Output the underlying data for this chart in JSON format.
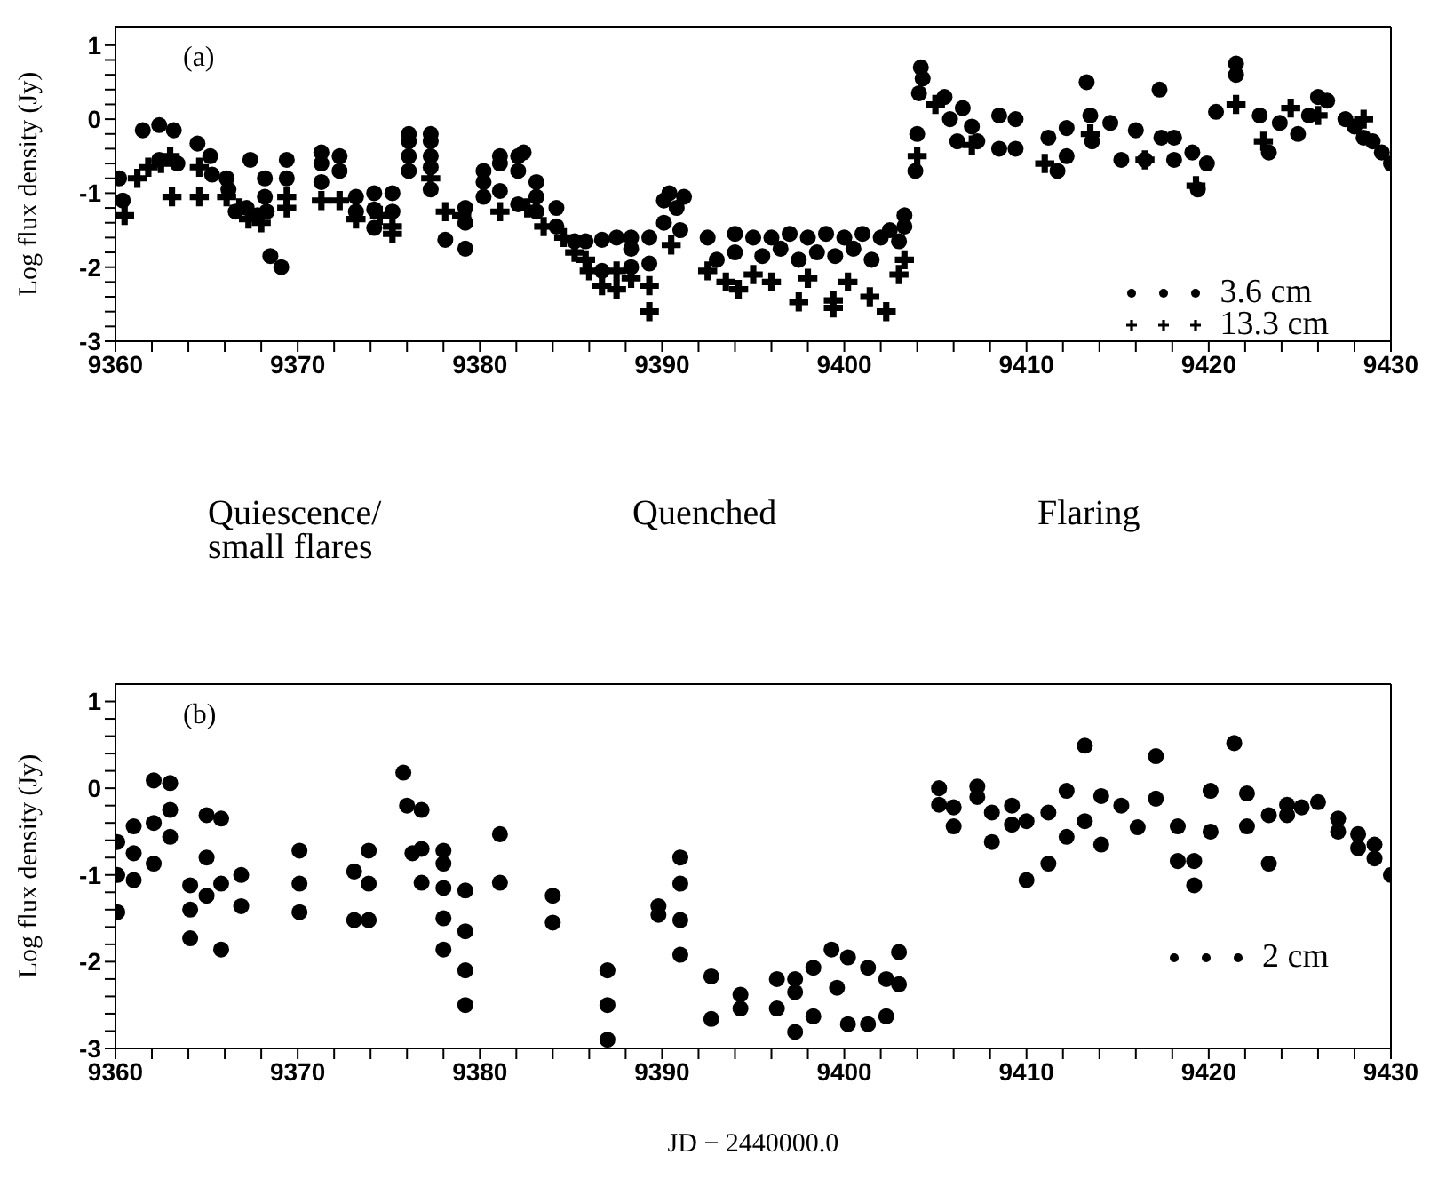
{
  "chart_data": [
    {
      "type": "scatter",
      "ylabel": "Log flux density (Jy)",
      "annotations": [
        "(a)",
        "Quiescence/\nsmall flares",
        "Quenched",
        "Flaring"
      ],
      "legend": "bottom right",
      "xlim": [
        9360,
        9430
      ],
      "ylim": [
        -3,
        1.25
      ],
      "xticks": [
        9360,
        {
          "value": 9362,
          "label": null
        },
        {
          "value": 9364,
          "label": null
        },
        {
          "value": 9366,
          "label": null
        },
        {
          "value": 9368,
          "label": null
        },
        9370,
        {
          "value": 9372,
          "label": null
        },
        {
          "value": 9374,
          "label": null
        },
        {
          "value": 9376,
          "label": null
        },
        {
          "value": 9378,
          "label": null
        },
        9380,
        {
          "value": 9382,
          "label": null
        },
        {
          "value": 9384,
          "label": null
        },
        {
          "value": 9386,
          "label": null
        },
        {
          "value": 9388,
          "label": null
        },
        9390,
        {
          "value": 9392,
          "label": null
        },
        {
          "value": 9394,
          "label": null
        },
        {
          "value": 9396,
          "label": null
        },
        {
          "value": 9398,
          "label": null
        },
        9400,
        {
          "value": 9402,
          "label": null
        },
        {
          "value": 9404,
          "label": null
        },
        {
          "value": 9406,
          "label": null
        },
        {
          "value": 9408,
          "label": null
        },
        9410,
        {
          "value": 9412,
          "label": null
        },
        {
          "value": 9414,
          "label": null
        },
        {
          "value": 9416,
          "label": null
        },
        {
          "value": 9418,
          "label": null
        },
        9420,
        {
          "value": 9422,
          "label": null
        },
        {
          "value": 9424,
          "label": null
        },
        {
          "value": 9426,
          "label": null
        },
        {
          "value": 9428,
          "label": null
        },
        9430
      ],
      "yticks": [
        -3,
        {
          "value": -2.8,
          "label": null
        },
        {
          "value": -2.6,
          "label": null
        },
        {
          "value": -2.4,
          "label": null
        },
        {
          "value": -2.2,
          "label": null
        },
        -2,
        {
          "value": -1.8,
          "label": null
        },
        {
          "value": -1.6,
          "label": null
        },
        {
          "value": -1.4,
          "label": null
        },
        {
          "value": -1.2,
          "label": null
        },
        -1,
        {
          "value": -0.8,
          "label": null
        },
        {
          "value": -0.6,
          "label": null
        },
        {
          "value": -0.4,
          "label": null
        },
        {
          "value": -0.2,
          "label": null
        },
        0,
        {
          "value": 0.2,
          "label": null
        },
        {
          "value": 0.4,
          "label": null
        },
        {
          "value": 0.6,
          "label": null
        },
        {
          "value": 0.8,
          "label": null
        },
        1
      ],
      "series": [
        {
          "name": "3.6 cm",
          "color": "#000000",
          "marker": "circle",
          "x": [
            9360.2,
            9360.4,
            9361.5,
            9362.4,
            9363.2,
            9362.4,
            9363.4,
            9364.5,
            9365.2,
            9365.3,
            9366.1,
            9366.2,
            9366.6,
            9367.4,
            9367.2,
            9367.8,
            9368.2,
            9368.2,
            9368.3,
            9368.5,
            9369.1,
            9369.4,
            9369.4,
            9371.3,
            9371.3,
            9371.3,
            9372.3,
            9372.3,
            9373.2,
            9373.2,
            9374.2,
            9374.2,
            9374.2,
            9375.2,
            9375.2,
            9376.1,
            9376.1,
            9376.1,
            9376.1,
            9377.3,
            9377.3,
            9377.3,
            9377.3,
            9377.3,
            9378.1,
            9379.2,
            9379.2,
            9379.2,
            9380.2,
            9380.2,
            9380.2,
            9381.1,
            9381.1,
            9381.1,
            9382.1,
            9382.1,
            9382.1,
            9382.4,
            9383.1,
            9383.1,
            9383.1,
            9384.2,
            9384.2,
            9385.2,
            9385.8,
            9386.7,
            9386.7,
            9387.5,
            9388.3,
            9388.3,
            9388.3,
            9389.3,
            9389.3,
            9390.1,
            9390.1,
            9390.4,
            9390.8,
            9391.0,
            9391.2,
            9392.5,
            9393.0,
            9394.0,
            9394.0,
            9395.0,
            9395.5,
            9396.0,
            9396.5,
            9397.0,
            9397.5,
            9398.0,
            9398.5,
            9399.0,
            9399.5,
            9400.0,
            9400.5,
            9401.0,
            9401.5,
            9402.0,
            9402.5,
            9403.0,
            9403.3,
            9403.3,
            9403.9,
            9404.0,
            9404.1,
            9404.2,
            9404.3,
            9405.5,
            9405.8,
            9406.2,
            9406.5,
            9407.0,
            9407.3,
            9408.5,
            9408.5,
            9409.4,
            9409.4,
            9411.2,
            9411.7,
            9412.2,
            9412.2,
            9413.3,
            9413.5,
            9413.6,
            9414.6,
            9415.2,
            9416.0,
            9416.5,
            9417.3,
            9417.4,
            9418.1,
            9418.1,
            9419.1,
            9419.4,
            9419.9,
            9420.4,
            9421.5,
            9421.5,
            9422.8,
            9423.3,
            9423.9,
            9424.9,
            9425.5,
            9426.0,
            9426.5,
            9427.5,
            9428.0,
            9428.5,
            9429.0,
            9429.5,
            9430.0
          ],
          "values": [
            -0.8,
            -1.1,
            -0.15,
            -0.08,
            -0.15,
            -0.55,
            -0.6,
            -0.33,
            -0.5,
            -0.75,
            -0.8,
            -0.95,
            -1.25,
            -0.55,
            -1.2,
            -1.3,
            -0.8,
            -1.05,
            -1.25,
            -1.85,
            -2.0,
            -0.55,
            -0.8,
            -0.45,
            -0.6,
            -0.85,
            -0.5,
            -0.7,
            -1.05,
            -1.25,
            -1.0,
            -1.22,
            -1.47,
            -1.0,
            -1.25,
            -0.2,
            -0.3,
            -0.5,
            -0.7,
            -0.2,
            -0.3,
            -0.5,
            -0.65,
            -0.95,
            -1.63,
            -1.2,
            -1.4,
            -1.75,
            -0.7,
            -0.85,
            -1.05,
            -0.5,
            -0.6,
            -0.97,
            -0.5,
            -0.7,
            -1.15,
            -0.45,
            -0.85,
            -1.05,
            -1.25,
            -1.2,
            -1.45,
            -1.65,
            -1.65,
            -1.63,
            -2.05,
            -1.6,
            -1.6,
            -1.75,
            -2.0,
            -1.6,
            -1.95,
            -1.1,
            -1.4,
            -1.0,
            -1.2,
            -1.5,
            -1.05,
            -1.6,
            -1.9,
            -1.55,
            -1.8,
            -1.6,
            -1.85,
            -1.6,
            -1.75,
            -1.55,
            -1.9,
            -1.6,
            -1.8,
            -1.55,
            -1.85,
            -1.6,
            -1.75,
            -1.55,
            -1.9,
            -1.6,
            -1.5,
            -1.65,
            -1.3,
            -1.45,
            -0.7,
            -0.2,
            0.35,
            0.7,
            0.55,
            0.3,
            0.0,
            -0.3,
            0.15,
            -0.1,
            -0.3,
            0.05,
            -0.4,
            0.0,
            -0.4,
            -0.25,
            -0.7,
            -0.12,
            -0.5,
            0.5,
            0.05,
            -0.3,
            -0.05,
            -0.55,
            -0.15,
            -0.55,
            0.4,
            -0.25,
            -0.25,
            -0.55,
            -0.45,
            -0.95,
            -0.6,
            0.1,
            0.75,
            0.6,
            0.05,
            -0.45,
            -0.05,
            -0.2,
            0.05,
            0.3,
            0.25,
            0.0,
            -0.1,
            -0.25,
            -0.3,
            -0.45,
            -0.6
          ]
        },
        {
          "name": "13.3 cm",
          "color": "#000000",
          "marker": "cross",
          "x": [
            9360.5,
            9361.2,
            9361.8,
            9362.5,
            9363.0,
            9363.1,
            9364.6,
            9364.6,
            9366.1,
            9366.8,
            9367.3,
            9368.0,
            9369.4,
            9369.4,
            9371.3,
            9372.3,
            9373.2,
            9374.5,
            9375.2,
            9375.2,
            9377.3,
            9378.1,
            9379.0,
            9381.1,
            9382.6,
            9383.5,
            9384.6,
            9385.2,
            9385.8,
            9386.0,
            9386.7,
            9387.5,
            9387.5,
            9388.3,
            9389.3,
            9389.3,
            9390.5,
            9392.5,
            9393.5,
            9394.2,
            9395.0,
            9396.0,
            9397.5,
            9398.0,
            9399.4,
            9399.4,
            9400.2,
            9401.4,
            9402.3,
            9403.0,
            9403.3,
            9404.0,
            9405.0,
            9407.0,
            9411.0,
            9413.5,
            9416.5,
            9419.3,
            9421.5,
            9423.0,
            9424.5,
            9426.0,
            9428.5
          ],
          "values": [
            -1.3,
            -0.8,
            -0.65,
            -0.6,
            -0.5,
            -1.05,
            -0.65,
            -1.05,
            -1.05,
            -1.2,
            -1.35,
            -1.4,
            -1.05,
            -1.2,
            -1.1,
            -1.1,
            -1.35,
            -1.3,
            -1.45,
            -1.55,
            -0.8,
            -1.25,
            -1.3,
            -1.25,
            -1.2,
            -1.45,
            -1.6,
            -1.8,
            -1.9,
            -2.05,
            -2.25,
            -2.05,
            -2.3,
            -2.15,
            -2.25,
            -2.6,
            -1.7,
            -2.05,
            -2.2,
            -2.3,
            -2.1,
            -2.2,
            -2.47,
            -2.15,
            -2.45,
            -2.55,
            -2.2,
            -2.4,
            -2.6,
            -2.1,
            -1.9,
            -0.5,
            0.2,
            -0.35,
            -0.6,
            -0.2,
            -0.55,
            -0.9,
            0.2,
            -0.3,
            0.15,
            0.05,
            0.0
          ]
        }
      ]
    },
    {
      "type": "scatter",
      "xlabel": "JD − 2440000.0",
      "ylabel": "Log flux density (Jy)",
      "annotations": [
        "(b)"
      ],
      "legend": "right",
      "xlim": [
        9360,
        9430
      ],
      "ylim": [
        -3,
        1.2
      ],
      "xticks": [
        9360,
        {
          "value": 9362,
          "label": null
        },
        {
          "value": 9364,
          "label": null
        },
        {
          "value": 9366,
          "label": null
        },
        {
          "value": 9368,
          "label": null
        },
        9370,
        {
          "value": 9372,
          "label": null
        },
        {
          "value": 9374,
          "label": null
        },
        {
          "value": 9376,
          "label": null
        },
        {
          "value": 9378,
          "label": null
        },
        9380,
        {
          "value": 9382,
          "label": null
        },
        {
          "value": 9384,
          "label": null
        },
        {
          "value": 9386,
          "label": null
        },
        {
          "value": 9388,
          "label": null
        },
        9390,
        {
          "value": 9392,
          "label": null
        },
        {
          "value": 9394,
          "label": null
        },
        {
          "value": 9396,
          "label": null
        },
        {
          "value": 9398,
          "label": null
        },
        9400,
        {
          "value": 9402,
          "label": null
        },
        {
          "value": 9404,
          "label": null
        },
        {
          "value": 9406,
          "label": null
        },
        {
          "value": 9408,
          "label": null
        },
        9410,
        {
          "value": 9412,
          "label": null
        },
        {
          "value": 9414,
          "label": null
        },
        {
          "value": 9416,
          "label": null
        },
        {
          "value": 9418,
          "label": null
        },
        9420,
        {
          "value": 9422,
          "label": null
        },
        {
          "value": 9424,
          "label": null
        },
        {
          "value": 9426,
          "label": null
        },
        {
          "value": 9428,
          "label": null
        },
        9430
      ],
      "yticks": [
        -3,
        {
          "value": -2.8,
          "label": null
        },
        {
          "value": -2.6,
          "label": null
        },
        {
          "value": -2.4,
          "label": null
        },
        {
          "value": -2.2,
          "label": null
        },
        -2,
        {
          "value": -1.8,
          "label": null
        },
        {
          "value": -1.6,
          "label": null
        },
        {
          "value": -1.4,
          "label": null
        },
        {
          "value": -1.2,
          "label": null
        },
        -1,
        {
          "value": -0.8,
          "label": null
        },
        {
          "value": -0.6,
          "label": null
        },
        {
          "value": -0.4,
          "label": null
        },
        {
          "value": -0.2,
          "label": null
        },
        0,
        {
          "value": 0.2,
          "label": null
        },
        {
          "value": 0.4,
          "label": null
        },
        {
          "value": 0.6,
          "label": null
        },
        {
          "value": 0.8,
          "label": null
        },
        1
      ],
      "series": [
        {
          "name": "2 cm",
          "color": "#000000",
          "marker": "circle",
          "x": [
            9360.1,
            9360.1,
            9360.1,
            9361.0,
            9361.0,
            9361.0,
            9362.1,
            9362.1,
            9362.1,
            9363.0,
            9363.0,
            9363.0,
            9364.1,
            9364.1,
            9364.1,
            9365.0,
            9365.0,
            9365.0,
            9365.8,
            9365.8,
            9365.8,
            9366.9,
            9366.9,
            9370.1,
            9370.1,
            9370.1,
            9373.1,
            9373.1,
            9373.9,
            9373.9,
            9373.9,
            9375.8,
            9376.0,
            9376.3,
            9376.8,
            9376.8,
            9376.8,
            9378.0,
            9378.0,
            9378.0,
            9378.0,
            9378.0,
            9379.2,
            9379.2,
            9379.2,
            9379.2,
            9381.1,
            9381.1,
            9384.0,
            9384.0,
            9387.0,
            9387.0,
            9387.0,
            9389.8,
            9389.8,
            9391.0,
            9391.0,
            9391.0,
            9391.0,
            9392.7,
            9392.7,
            9394.3,
            9394.3,
            9396.3,
            9396.3,
            9397.3,
            9397.3,
            9397.3,
            9398.3,
            9398.3,
            9399.3,
            9399.6,
            9400.2,
            9400.2,
            9401.3,
            9401.3,
            9402.3,
            9402.3,
            9403.0,
            9403.0,
            9405.2,
            9405.2,
            9406.0,
            9406.0,
            9407.3,
            9407.3,
            9408.1,
            9408.1,
            9409.2,
            9409.2,
            9410.0,
            9410.0,
            9411.2,
            9411.2,
            9412.2,
            9412.2,
            9413.2,
            9413.2,
            9414.1,
            9414.1,
            9415.2,
            9416.1,
            9417.1,
            9417.1,
            9418.3,
            9418.3,
            9419.2,
            9419.2,
            9420.1,
            9420.1,
            9421.4,
            9422.1,
            9422.1,
            9423.3,
            9423.3,
            9424.3,
            9424.3,
            9425.1,
            9426.0,
            9427.1,
            9427.1,
            9428.2,
            9428.2,
            9429.1,
            9429.1,
            9430.0
          ],
          "values": [
            -0.62,
            -1.0,
            -1.43,
            -0.44,
            -0.75,
            -1.06,
            0.09,
            -0.4,
            -0.87,
            0.06,
            -0.25,
            -0.56,
            -1.12,
            -1.4,
            -1.73,
            -0.31,
            -0.8,
            -1.24,
            -0.35,
            -1.1,
            -1.86,
            -1.0,
            -1.36,
            -0.72,
            -1.1,
            -1.43,
            -0.96,
            -1.52,
            -0.72,
            -1.1,
            -1.52,
            0.18,
            -0.2,
            -0.75,
            -0.25,
            -0.7,
            -1.09,
            -0.72,
            -0.87,
            -1.15,
            -1.5,
            -1.86,
            -1.18,
            -1.65,
            -2.1,
            -2.5,
            -0.53,
            -1.09,
            -1.24,
            -1.55,
            -2.1,
            -2.5,
            -2.9,
            -1.36,
            -1.46,
            -0.8,
            -1.1,
            -1.52,
            -1.92,
            -2.17,
            -2.66,
            -2.38,
            -2.54,
            -2.2,
            -2.54,
            -2.2,
            -2.35,
            -2.81,
            -2.07,
            -2.63,
            -1.86,
            -2.3,
            -2.72,
            -1.95,
            -2.07,
            -2.72,
            -2.2,
            -2.63,
            -1.89,
            -2.26,
            0.0,
            -0.19,
            -0.22,
            -0.44,
            0.02,
            -0.1,
            -0.28,
            -0.62,
            -0.2,
            -0.42,
            -0.38,
            -1.06,
            -0.28,
            -0.87,
            -0.03,
            -0.56,
            0.49,
            -0.38,
            -0.09,
            -0.65,
            -0.2,
            -0.45,
            0.37,
            -0.12,
            -0.44,
            -0.84,
            -0.84,
            -1.12,
            -0.03,
            -0.5,
            0.52,
            -0.06,
            -0.44,
            -0.31,
            -0.87,
            -0.19,
            -0.31,
            -0.22,
            -0.16,
            -0.35,
            -0.5,
            -0.53,
            -0.69,
            -0.65,
            -0.81,
            -1.0
          ]
        }
      ]
    }
  ]
}
